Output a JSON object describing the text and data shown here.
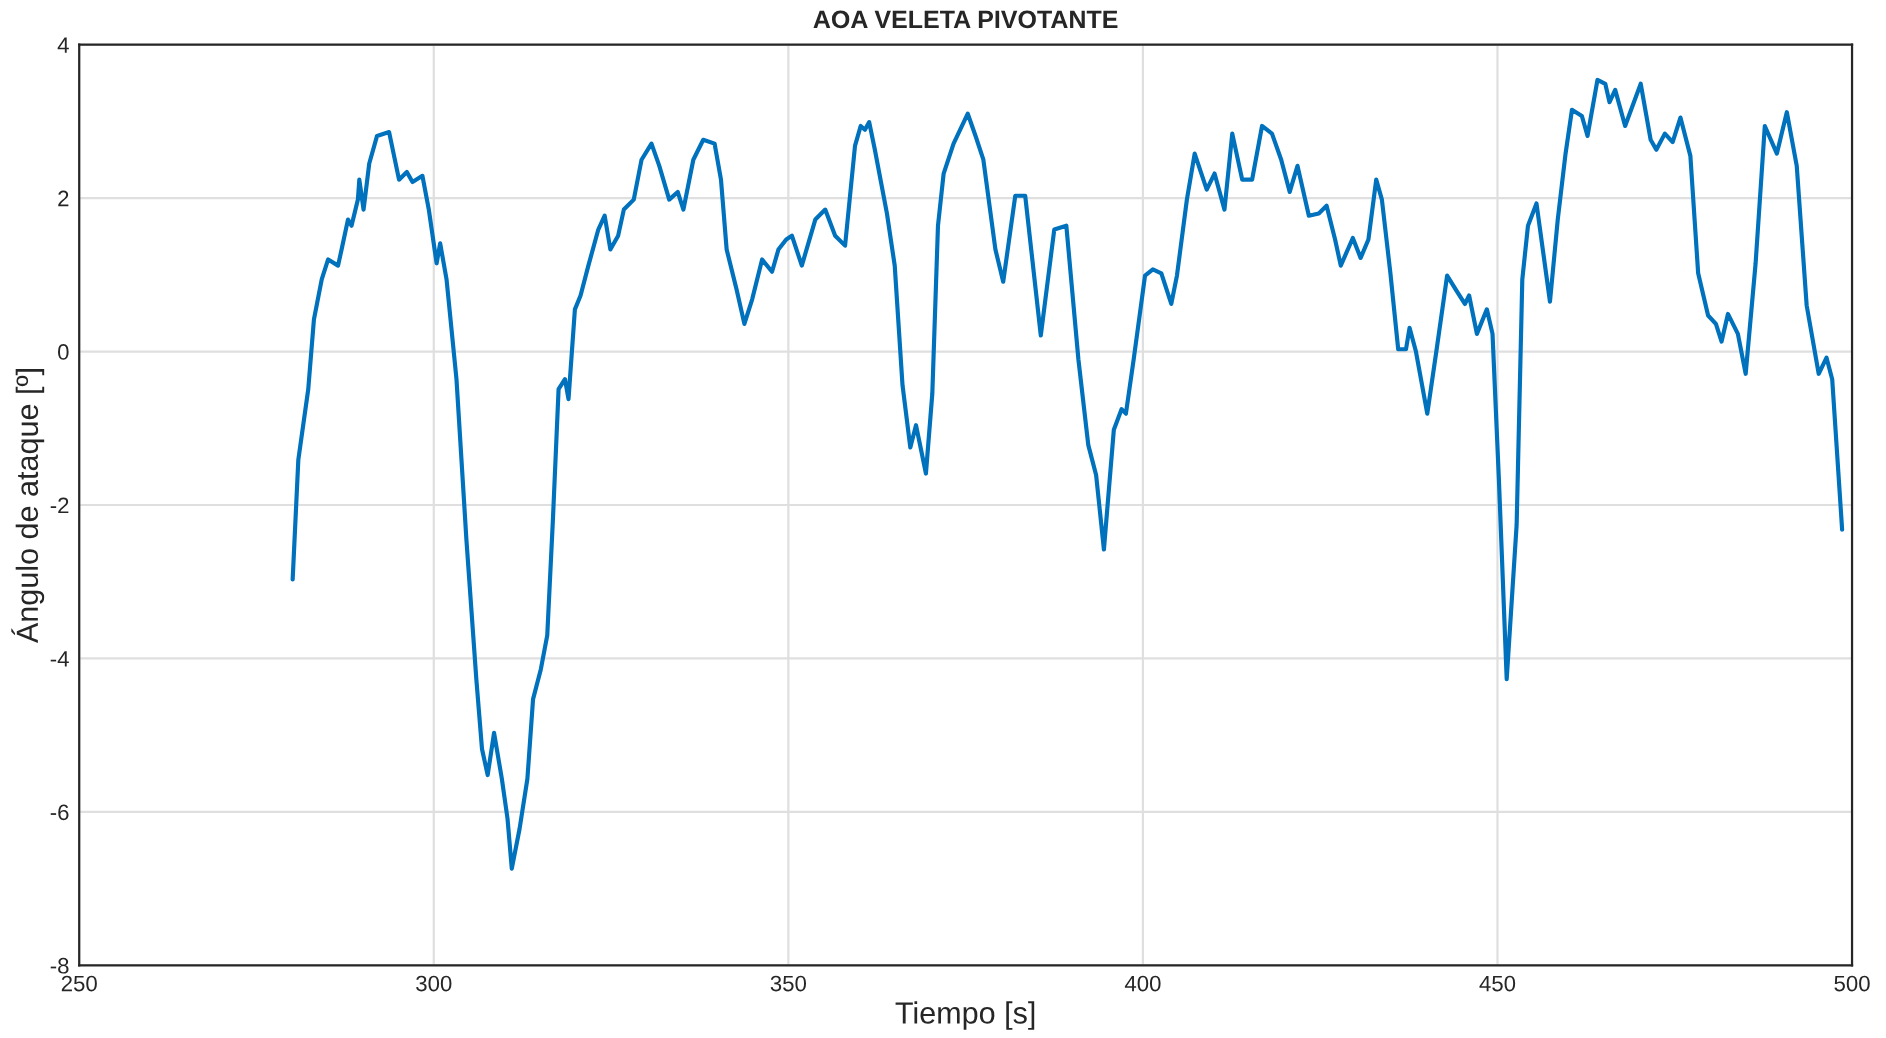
{
  "chart_data": {
    "type": "line",
    "title": "AOA VELETA PIVOTANTE",
    "xlabel": "Tiempo [s]",
    "ylabel": "Ángulo de ataque [º]",
    "xlim": [
      250,
      500
    ],
    "ylim": [
      -8,
      4
    ],
    "xticks": [
      250,
      300,
      350,
      400,
      450,
      500
    ],
    "yticks": [
      -8,
      -6,
      -4,
      -2,
      0,
      2,
      4
    ],
    "grid": true,
    "line_style": "solid",
    "marker": "none",
    "series": [
      {
        "color": "#0072bd",
        "x": [
          280.1,
          280.9,
          282.3,
          283.1,
          284.2,
          285.1,
          286.5,
          287.0,
          287.9,
          288.4,
          289.3,
          289.5,
          290.1,
          290.9,
          292.0,
          293.7,
          295.1,
          296.2,
          297.0,
          298.4,
          299.3,
          300.4,
          300.9,
          301.8,
          303.2,
          304.6,
          306.0,
          306.8,
          307.6,
          308.5,
          309.6,
          310.4,
          311.0,
          312.1,
          313.2,
          314.0,
          315.1,
          316.0,
          316.8,
          317.6,
          318.5,
          319.0,
          319.9,
          320.7,
          321.8,
          323.2,
          324.1,
          324.9,
          326.0,
          326.8,
          328.2,
          329.3,
          330.7,
          331.8,
          333.2,
          334.4,
          335.2,
          336.6,
          338.0,
          339.6,
          340.5,
          341.3,
          342.7,
          343.8,
          344.9,
          346.3,
          347.7,
          348.6,
          349.7,
          350.5,
          351.9,
          353.8,
          355.2,
          356.6,
          358.0,
          359.4,
          360.2,
          360.8,
          361.4,
          362.2,
          363.9,
          365.0,
          366.1,
          367.2,
          368.0,
          369.4,
          370.3,
          371.1,
          371.9,
          373.3,
          375.3,
          376.4,
          377.5,
          379.2,
          380.3,
          382.0,
          383.4,
          385.6,
          387.5,
          389.2,
          390.9,
          392.3,
          393.4,
          394.5,
          395.9,
          397.0,
          397.6,
          398.7,
          400.3,
          401.4,
          402.6,
          404.0,
          404.8,
          406.2,
          407.3,
          409.0,
          410.1,
          411.5,
          412.6,
          414.0,
          415.4,
          416.8,
          418.2,
          419.5,
          420.7,
          421.8,
          423.4,
          424.8,
          425.9,
          427.1,
          427.9,
          429.6,
          430.7,
          431.8,
          432.9,
          433.7,
          434.9,
          436.0,
          437.1,
          437.6,
          438.5,
          440.1,
          441.5,
          442.9,
          444.3,
          445.4,
          446.0,
          447.1,
          448.5,
          449.3,
          450.2,
          451.3,
          452.7,
          453.5,
          454.3,
          455.5,
          457.4,
          458.5,
          459.6,
          460.5,
          461.9,
          462.7,
          464.1,
          465.2,
          465.8,
          466.6,
          468.0,
          470.2,
          471.6,
          472.4,
          473.6,
          474.7,
          475.8,
          477.2,
          478.3,
          479.7,
          480.8,
          481.6,
          482.5,
          483.9,
          485.0,
          486.4,
          487.7,
          489.4,
          490.8,
          492.2,
          493.6,
          495.3,
          496.4,
          497.2,
          498.6
        ],
        "values": [
          -2.97,
          -1.41,
          -0.49,
          0.42,
          0.94,
          1.2,
          1.12,
          1.33,
          1.72,
          1.64,
          1.98,
          2.24,
          1.85,
          2.45,
          2.81,
          2.86,
          2.24,
          2.34,
          2.21,
          2.29,
          1.85,
          1.15,
          1.41,
          0.94,
          -0.36,
          -2.45,
          -4.27,
          -5.18,
          -5.52,
          -4.97,
          -5.57,
          -6.09,
          -6.74,
          -6.22,
          -5.57,
          -4.53,
          -4.14,
          -3.7,
          -2.19,
          -0.49,
          -0.36,
          -0.62,
          0.55,
          0.73,
          1.12,
          1.59,
          1.77,
          1.33,
          1.51,
          1.85,
          1.98,
          2.5,
          2.71,
          2.42,
          1.98,
          2.08,
          1.85,
          2.5,
          2.76,
          2.71,
          2.24,
          1.33,
          0.81,
          0.36,
          0.68,
          1.2,
          1.04,
          1.33,
          1.46,
          1.51,
          1.12,
          1.72,
          1.85,
          1.51,
          1.38,
          2.68,
          2.94,
          2.89,
          2.99,
          2.63,
          1.8,
          1.12,
          -0.44,
          -1.25,
          -0.96,
          -1.59,
          -0.55,
          1.64,
          2.32,
          2.71,
          3.1,
          2.81,
          2.5,
          1.33,
          0.91,
          2.03,
          2.03,
          0.21,
          1.59,
          1.64,
          -0.1,
          -1.22,
          -1.61,
          -2.58,
          -1.02,
          -0.75,
          -0.81,
          -0.1,
          0.99,
          1.07,
          1.02,
          0.62,
          0.99,
          1.98,
          2.58,
          2.11,
          2.32,
          1.85,
          2.84,
          2.24,
          2.24,
          2.94,
          2.84,
          2.5,
          2.08,
          2.42,
          1.77,
          1.8,
          1.9,
          1.46,
          1.12,
          1.48,
          1.22,
          1.46,
          2.24,
          1.98,
          1.02,
          0.03,
          0.03,
          0.31,
          0.0,
          -0.81,
          0.08,
          0.99,
          0.78,
          0.62,
          0.73,
          0.23,
          0.55,
          0.23,
          -1.67,
          -4.27,
          -2.26,
          0.94,
          1.64,
          1.93,
          0.65,
          1.72,
          2.58,
          3.15,
          3.07,
          2.81,
          3.54,
          3.49,
          3.25,
          3.41,
          2.94,
          3.49,
          2.76,
          2.63,
          2.84,
          2.73,
          3.05,
          2.55,
          1.02,
          0.47,
          0.36,
          0.13,
          0.49,
          0.23,
          -0.29,
          1.15,
          2.94,
          2.58,
          3.12,
          2.42,
          0.6,
          -0.29,
          -0.08,
          -0.36,
          -2.32
        ]
      }
    ]
  }
}
